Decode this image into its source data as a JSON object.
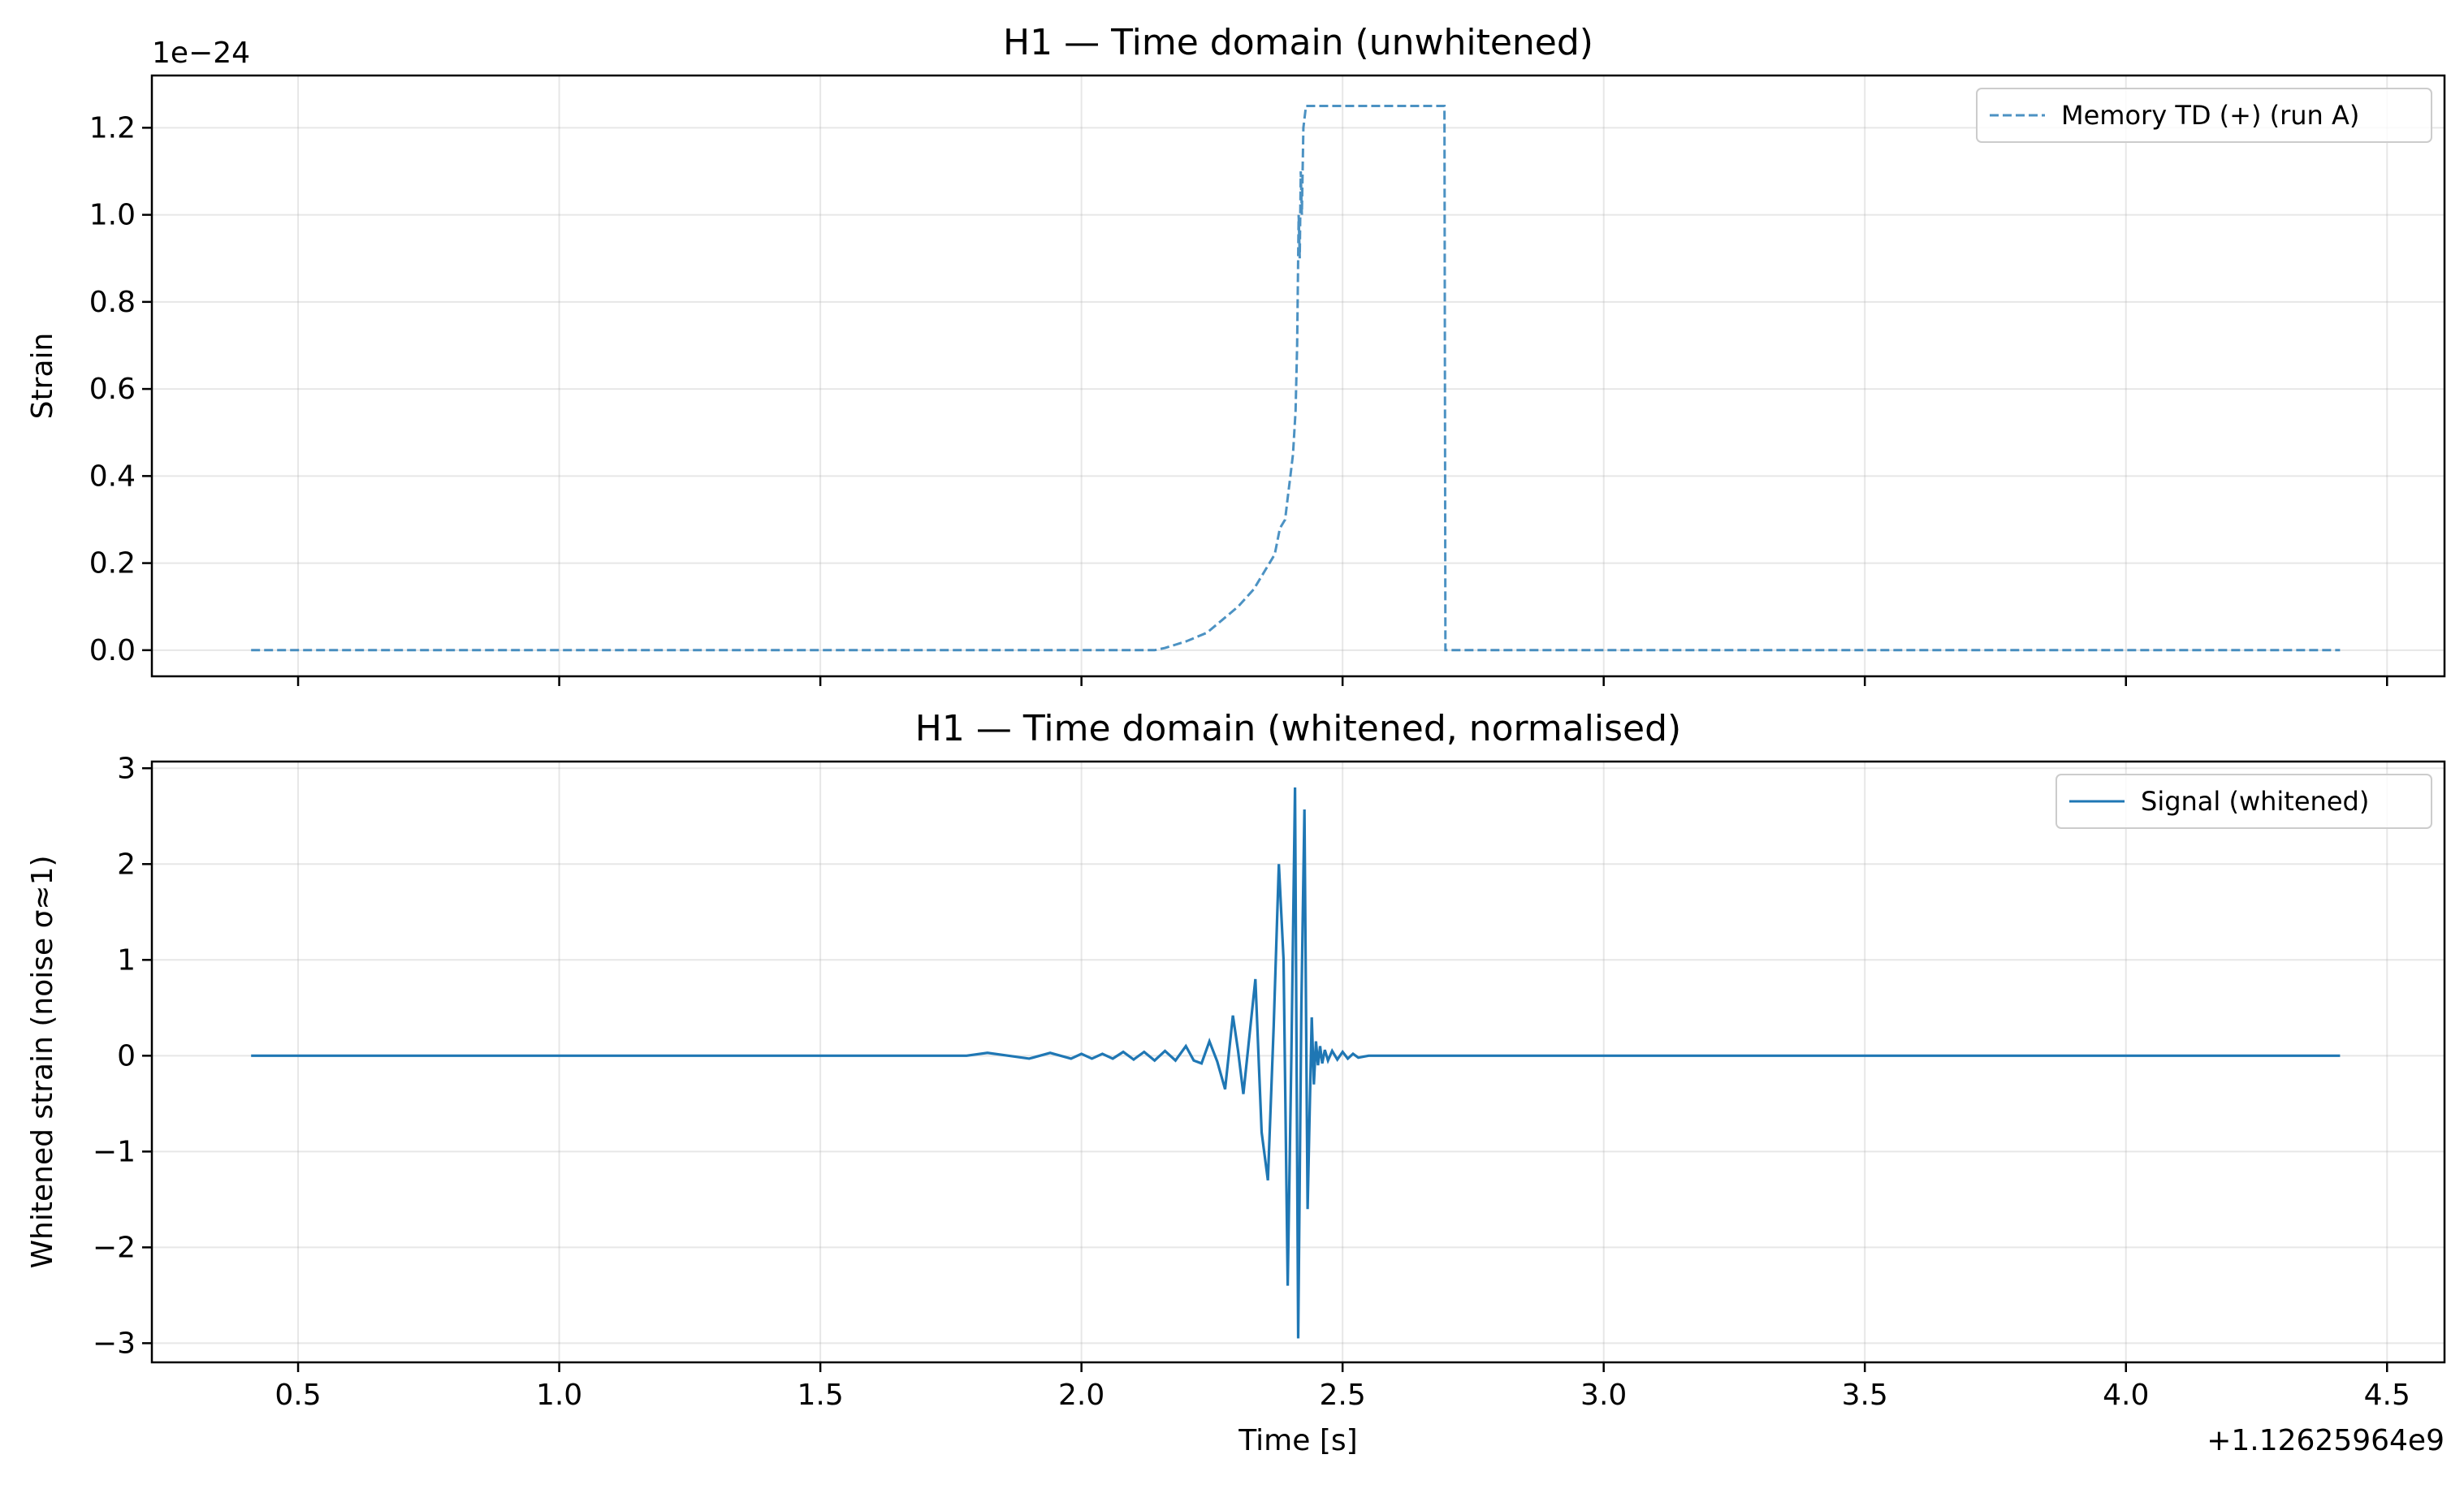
{
  "colors": {
    "series": "#1f77b4",
    "grid": "#b0b0b0",
    "axes": "#000000"
  },
  "chart_data": [
    {
      "type": "line",
      "title": "H1 — Time domain (unwhitened)",
      "xlabel": "",
      "ylabel": "Strain",
      "y_scale_label": "1e−24",
      "xlim": [
        0.22,
        4.61
      ],
      "ylim": [
        -0.06,
        1.32
      ],
      "xticks": [
        0.5,
        1.0,
        1.5,
        2.0,
        2.5,
        3.0,
        3.5,
        4.0,
        4.5
      ],
      "xticklabels": [],
      "yticks": [
        0.0,
        0.2,
        0.4,
        0.6,
        0.8,
        1.0,
        1.2
      ],
      "yticklabels": [
        "0.0",
        "0.2",
        "0.4",
        "0.6",
        "0.8",
        "1.0",
        "1.2"
      ],
      "grid": true,
      "legend": {
        "placement": "top-right"
      },
      "series": [
        {
          "name": "Memory TD (+) (run A)",
          "style": "dashed",
          "x": [
            0.41,
            1.0,
            1.5,
            2.0,
            2.14,
            2.16,
            2.2,
            2.24,
            2.27,
            2.3,
            2.33,
            2.35,
            2.37,
            2.38,
            2.39,
            2.395,
            2.4,
            2.405,
            2.41,
            2.413,
            2.416,
            2.418,
            2.42,
            2.422,
            2.425,
            2.43,
            2.44,
            2.5,
            2.6,
            2.695,
            2.697,
            3.0,
            3.5,
            4.0,
            4.41
          ],
          "y": [
            0.0,
            0.0,
            0.0,
            0.0,
            0.0,
            0.005,
            0.02,
            0.04,
            0.07,
            0.1,
            0.14,
            0.18,
            0.22,
            0.28,
            0.3,
            0.35,
            0.4,
            0.45,
            0.55,
            0.7,
            1.0,
            0.9,
            1.1,
            1.0,
            1.2,
            1.25,
            1.25,
            1.25,
            1.25,
            1.25,
            0.0,
            0.0,
            0.0,
            0.0,
            0.0
          ]
        }
      ]
    },
    {
      "type": "line",
      "title": "H1 — Time domain (whitened, normalised)",
      "xlabel": "Time [s]",
      "ylabel": "Whitened strain (noise σ≈1)",
      "x_offset_label": "+1.12625964e9",
      "xlim": [
        0.22,
        4.61
      ],
      "ylim": [
        -3.2,
        3.07
      ],
      "xticks": [
        0.5,
        1.0,
        1.5,
        2.0,
        2.5,
        3.0,
        3.5,
        4.0,
        4.5
      ],
      "xticklabels": [
        "0.5",
        "1.0",
        "1.5",
        "2.0",
        "2.5",
        "3.0",
        "3.5",
        "4.0",
        "4.5"
      ],
      "yticks": [
        -3,
        -2,
        -1,
        0,
        1,
        2,
        3
      ],
      "yticklabels": [
        "−3",
        "−2",
        "−1",
        "0",
        "1",
        "2",
        "3"
      ],
      "grid": true,
      "legend": {
        "placement": "top-right"
      },
      "series": [
        {
          "name": "Signal (whitened)",
          "style": "solid",
          "x": [
            0.41,
            1.78,
            1.82,
            1.86,
            1.9,
            1.94,
            1.98,
            2.0,
            2.02,
            2.04,
            2.06,
            2.08,
            2.1,
            2.12,
            2.14,
            2.16,
            2.18,
            2.2,
            2.215,
            2.23,
            2.245,
            2.26,
            2.275,
            2.29,
            2.3,
            2.31,
            2.32,
            2.333,
            2.345,
            2.357,
            2.368,
            2.378,
            2.387,
            2.395,
            2.402,
            2.409,
            2.415,
            2.421,
            2.427,
            2.433,
            2.437,
            2.441,
            2.445,
            2.449,
            2.453,
            2.457,
            2.461,
            2.466,
            2.472,
            2.48,
            2.49,
            2.5,
            2.51,
            2.52,
            2.53,
            2.55,
            2.6,
            2.7,
            4.41
          ],
          "y": [
            0.0,
            0.0,
            0.03,
            0.0,
            -0.03,
            0.03,
            -0.03,
            0.02,
            -0.03,
            0.02,
            -0.03,
            0.04,
            -0.04,
            0.04,
            -0.05,
            0.05,
            -0.05,
            0.1,
            -0.05,
            -0.08,
            0.15,
            -0.06,
            -0.35,
            0.42,
            0.05,
            -0.4,
            0.12,
            0.8,
            -0.8,
            -1.3,
            0.3,
            2.0,
            1.0,
            -2.4,
            0.0,
            2.8,
            -2.95,
            0.5,
            2.57,
            -1.6,
            -0.6,
            0.4,
            -0.3,
            0.15,
            -0.1,
            0.1,
            -0.08,
            0.06,
            -0.05,
            0.05,
            -0.04,
            0.04,
            -0.03,
            0.02,
            -0.02,
            0.0,
            0.0,
            0.0,
            0.0
          ]
        }
      ]
    }
  ]
}
